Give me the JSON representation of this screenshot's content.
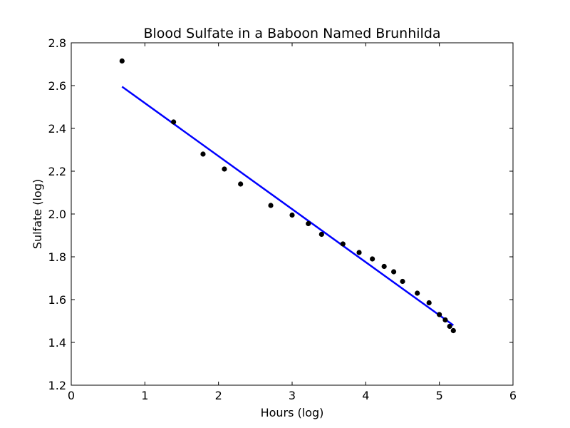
{
  "chart_data": {
    "type": "scatter",
    "title": "Blood Sulfate in a Baboon Named Brunhilda",
    "xlabel": "Hours (log)",
    "ylabel": "Sulfate (log)",
    "xlim": [
      0,
      6
    ],
    "ylim": [
      1.2,
      2.8
    ],
    "xticks": [
      0,
      1,
      2,
      3,
      4,
      5,
      6
    ],
    "xtick_labels": [
      "0",
      "1",
      "2",
      "3",
      "4",
      "5",
      "6"
    ],
    "yticks": [
      1.2,
      1.4,
      1.6,
      1.8,
      2.0,
      2.2,
      2.4,
      2.6,
      2.8
    ],
    "ytick_labels": [
      "1.2",
      "1.4",
      "1.6",
      "1.8",
      "2.0",
      "2.2",
      "2.4",
      "2.6",
      "2.8"
    ],
    "grid": false,
    "series": [
      {
        "kind": "scatter",
        "color": "#000000",
        "x": [
          0.69,
          1.39,
          1.79,
          2.08,
          2.3,
          2.71,
          3.0,
          3.22,
          3.4,
          3.69,
          3.91,
          4.09,
          4.25,
          4.38,
          4.5,
          4.7,
          4.86,
          5.0,
          5.08,
          5.14,
          5.19
        ],
        "y": [
          2.715,
          2.43,
          2.28,
          2.21,
          2.14,
          2.04,
          1.995,
          1.955,
          1.905,
          1.86,
          1.82,
          1.79,
          1.755,
          1.73,
          1.685,
          1.63,
          1.585,
          1.53,
          1.505,
          1.475,
          1.455
        ]
      },
      {
        "kind": "line",
        "color": "#0000ff",
        "x": [
          0.69,
          5.19
        ],
        "y": [
          2.595,
          1.48
        ]
      }
    ]
  }
}
